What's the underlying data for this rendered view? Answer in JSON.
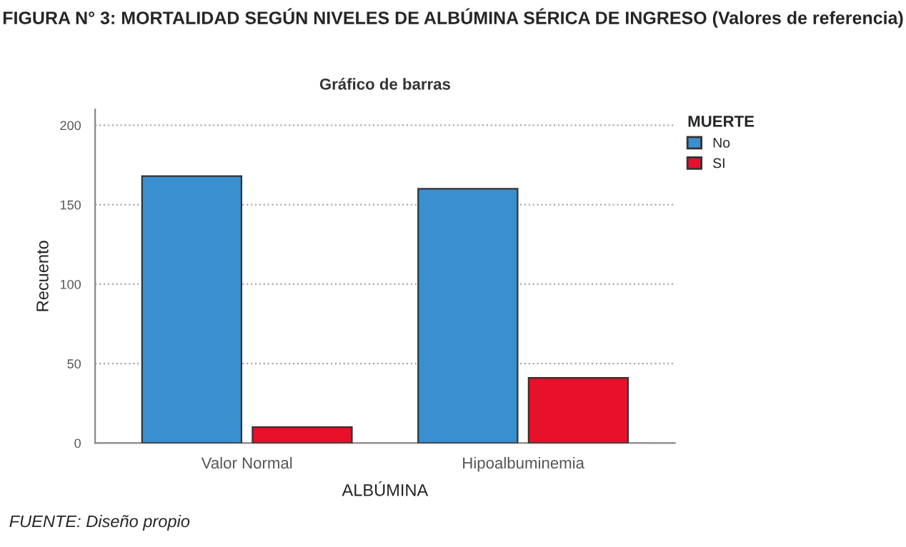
{
  "chart_data": {
    "type": "bar",
    "title": "FIGURA N° 3: MORTALIDAD SEGÚN NIVELES DE ALBÚMINA SÉRICA DE INGRESO (Valores de referencia)",
    "subtitle": "Gráfico de barras",
    "xlabel": "ALBÚMINA",
    "ylabel": "Recuento",
    "legend_title": "MUERTE",
    "categories": [
      "Valor Normal",
      "Hipoalbuminemia"
    ],
    "series": [
      {
        "name": "No",
        "color": "#3a8fd0",
        "values": [
          168,
          160
        ]
      },
      {
        "name": "SI",
        "color": "#e8102a",
        "values": [
          10,
          41
        ]
      }
    ],
    "ylim": [
      0,
      210
    ],
    "yticks": [
      0,
      50,
      100,
      150,
      200
    ],
    "grid": "y",
    "legend": "top right",
    "annotations": [
      "FUENTE: Diseño propio"
    ]
  }
}
